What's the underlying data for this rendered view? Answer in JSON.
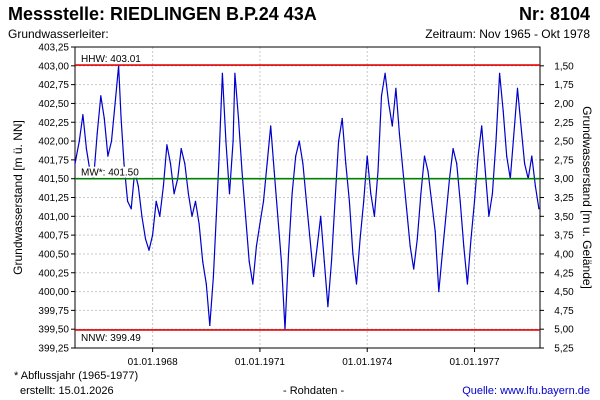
{
  "header": {
    "title": "Messstelle: RIEDLINGEN B.P.24 43A",
    "nr": "Nr: 8104",
    "aquifer": "Grundwasserleiter:",
    "period": "Zeitraum: Nov 1965 - Okt 1978"
  },
  "footer": {
    "footnote": "* Abflussjahr (1965-1977)",
    "created": "erstellt:  15.01.2026",
    "rawdata": "- Rohdaten -",
    "source_label": "Quelle:",
    "source_url": "www.lfu.bayern.de"
  },
  "colors": {
    "series": "#0000cc",
    "hhw": "#e00000",
    "nnw": "#e00000",
    "mw": "#008000",
    "grid": "#c8c8c8"
  },
  "chart_data": {
    "type": "line",
    "ylabel": "Grundwasserstand [m ü. NN]",
    "y2label": "Grundwasserstand [m u. Gelände]",
    "ylim": [
      399.25,
      403.25
    ],
    "yticks": [
      "403,25",
      "403,00",
      "402,75",
      "402,50",
      "402,25",
      "402,00",
      "401,75",
      "401,50",
      "401,25",
      "401,00",
      "400,75",
      "400,50",
      "400,25",
      "400,00",
      "399,75",
      "399,50",
      "399,25"
    ],
    "y2ticks": [
      "1,50",
      "1,75",
      "2,00",
      "2,25",
      "2,50",
      "2,75",
      "3,00",
      "3,25",
      "3,50",
      "3,75",
      "4,00",
      "4,25",
      "4,50",
      "4,75",
      "5,00",
      "5,25"
    ],
    "xlim": [
      1965.83,
      1978.83
    ],
    "xticks": [
      {
        "x": 1968.0,
        "label": "01.01.1968"
      },
      {
        "x": 1971.0,
        "label": "01.01.1971"
      },
      {
        "x": 1974.0,
        "label": "01.01.1974"
      },
      {
        "x": 1977.0,
        "label": "01.01.1977"
      }
    ],
    "grid": true,
    "reference_lines": [
      {
        "name": "HHW",
        "label": "HHW: 403.01",
        "y": 403.01,
        "color": "#e00000"
      },
      {
        "name": "MW",
        "label": "MW*: 401.50",
        "y": 401.5,
        "color": "#008000"
      },
      {
        "name": "NNW",
        "label": "NNW: 399.49",
        "y": 399.49,
        "color": "#e00000"
      }
    ],
    "series": [
      {
        "x": [
          1965.83,
          1965.95,
          1966.05,
          1966.15,
          1966.25,
          1966.35,
          1966.45,
          1966.55,
          1966.65,
          1966.75,
          1966.85,
          1966.95,
          1967.05,
          1967.12,
          1967.2,
          1967.3,
          1967.4,
          1967.5,
          1967.6,
          1967.7,
          1967.8,
          1967.9,
          1968.0,
          1968.1,
          1968.2,
          1968.3,
          1968.4,
          1968.5,
          1968.6,
          1968.7,
          1968.8,
          1968.9,
          1969.0,
          1969.1,
          1969.2,
          1969.3,
          1969.4,
          1969.5,
          1969.6,
          1969.7,
          1969.78,
          1969.85,
          1969.95,
          1970.05,
          1970.15,
          1970.25,
          1970.3,
          1970.4,
          1970.5,
          1970.6,
          1970.7,
          1970.8,
          1970.9,
          1971.0,
          1971.1,
          1971.2,
          1971.3,
          1971.4,
          1971.5,
          1971.6,
          1971.7,
          1971.8,
          1971.9,
          1972.0,
          1972.1,
          1972.2,
          1972.3,
          1972.4,
          1972.5,
          1972.6,
          1972.7,
          1972.8,
          1972.9,
          1973.0,
          1973.1,
          1973.2,
          1973.3,
          1973.4,
          1973.5,
          1973.6,
          1973.7,
          1973.8,
          1973.9,
          1974.0,
          1974.1,
          1974.2,
          1974.3,
          1974.4,
          1974.5,
          1974.6,
          1974.7,
          1974.8,
          1974.9,
          1975.0,
          1975.1,
          1975.2,
          1975.3,
          1975.4,
          1975.5,
          1975.6,
          1975.7,
          1975.8,
          1975.9,
          1976.0,
          1976.1,
          1976.2,
          1976.3,
          1976.4,
          1976.5,
          1976.6,
          1976.7,
          1976.8,
          1976.9,
          1977.0,
          1977.1,
          1977.2,
          1977.3,
          1977.4,
          1977.5,
          1977.6,
          1977.7,
          1977.8,
          1977.9,
          1978.0,
          1978.1,
          1978.2,
          1978.3,
          1978.4,
          1978.5,
          1978.6,
          1978.7,
          1978.8
        ],
        "y": [
          401.7,
          402.0,
          402.35,
          401.9,
          401.6,
          401.5,
          402.1,
          402.6,
          402.3,
          401.8,
          402.0,
          402.5,
          403.0,
          402.3,
          401.7,
          401.2,
          401.1,
          401.6,
          401.4,
          401.0,
          400.7,
          400.55,
          400.75,
          401.2,
          401.0,
          401.4,
          401.95,
          401.7,
          401.3,
          401.5,
          401.9,
          401.7,
          401.3,
          401.0,
          401.2,
          400.9,
          400.4,
          400.1,
          399.55,
          400.2,
          401.0,
          401.7,
          402.9,
          402.0,
          401.3,
          402.0,
          402.9,
          402.3,
          401.6,
          401.0,
          400.4,
          400.1,
          400.6,
          400.9,
          401.2,
          401.7,
          402.2,
          401.6,
          401.0,
          400.4,
          399.5,
          400.5,
          401.3,
          401.8,
          402.0,
          401.7,
          401.2,
          400.7,
          400.2,
          400.6,
          401.0,
          400.4,
          399.8,
          400.4,
          401.2,
          402.0,
          402.3,
          401.7,
          401.2,
          400.5,
          400.1,
          400.7,
          401.2,
          401.8,
          401.3,
          401.0,
          401.6,
          402.6,
          402.9,
          402.5,
          402.2,
          402.7,
          402.1,
          401.6,
          401.1,
          400.6,
          400.3,
          400.7,
          401.3,
          401.8,
          401.6,
          401.2,
          400.8,
          400.0,
          400.5,
          401.0,
          401.5,
          401.9,
          401.7,
          401.2,
          400.6,
          400.1,
          400.7,
          401.2,
          401.8,
          402.2,
          401.6,
          401.0,
          401.3,
          402.0,
          402.9,
          402.4,
          401.8,
          401.5,
          402.1,
          402.7,
          402.2,
          401.7,
          401.5,
          401.8,
          401.4,
          401.1
        ]
      }
    ]
  }
}
